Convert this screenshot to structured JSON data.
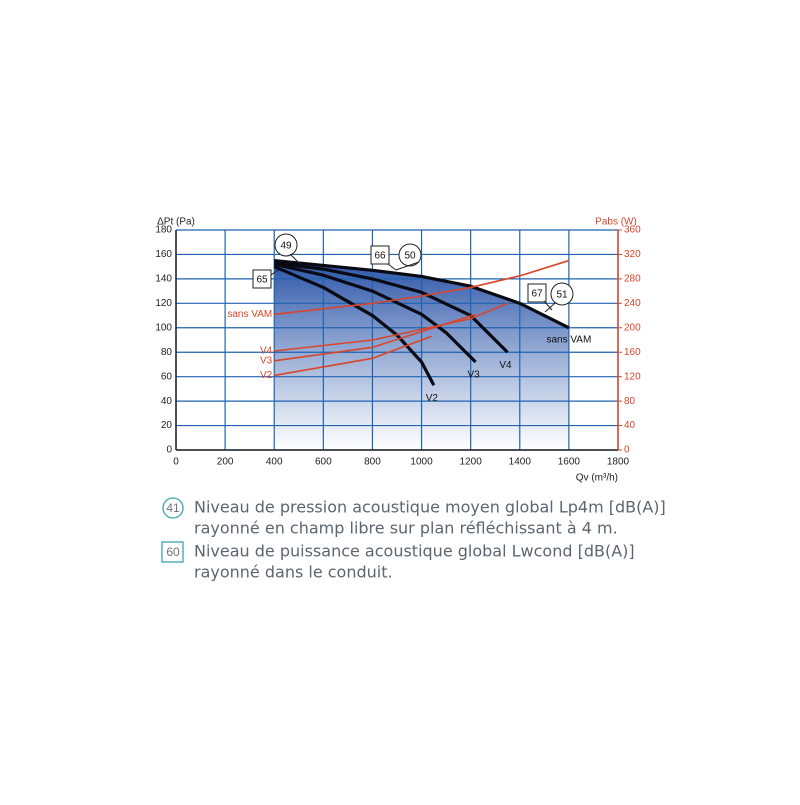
{
  "chart_data": {
    "type": "line",
    "y_label": "ΔPt (Pa)",
    "y2_label": "Pabs (W)",
    "x_label": "Qv (m³/h)",
    "xlim": [
      0,
      1800
    ],
    "xticks": [
      0,
      200,
      400,
      600,
      800,
      1000,
      1200,
      1400,
      1600,
      1800
    ],
    "ylim": [
      0,
      180
    ],
    "yticks": [
      0,
      20,
      40,
      60,
      80,
      100,
      120,
      140,
      160,
      180
    ],
    "y2lim": [
      0,
      360
    ],
    "y2ticks": [
      0,
      40,
      80,
      120,
      160,
      200,
      240,
      280,
      320,
      360
    ],
    "grid": true,
    "grid_color": "#1f63b0",
    "y2_color": "#d9452b",
    "series": [
      {
        "name": "sans VAM",
        "color": "#0a0a14",
        "x": [
          400,
          600,
          800,
          1000,
          1200,
          1400,
          1600
        ],
        "values": [
          155,
          151,
          147,
          142,
          134,
          120,
          100
        ]
      },
      {
        "name": "V4",
        "color": "#0a0a14",
        "x": [
          400,
          600,
          800,
          1000,
          1200,
          1350
        ],
        "values": [
          153,
          148,
          140,
          129,
          110,
          80
        ]
      },
      {
        "name": "V3",
        "color": "#0a0a14",
        "x": [
          400,
          600,
          800,
          1000,
          1100,
          1220
        ],
        "values": [
          152,
          143,
          130,
          111,
          96,
          72
        ]
      },
      {
        "name": "V2",
        "color": "#0a0a14",
        "x": [
          400,
          600,
          800,
          900,
          1000,
          1050
        ],
        "values": [
          150,
          133,
          110,
          94,
          72,
          53
        ]
      },
      {
        "name": "sans VAM",
        "color": "#d9452b",
        "axis": "y2",
        "x": [
          400,
          800,
          1000,
          1200,
          1400,
          1600
        ],
        "values": [
          222,
          240,
          252,
          266,
          285,
          310
        ]
      },
      {
        "name": "V4",
        "color": "#d9452b",
        "axis": "y2",
        "x": [
          400,
          800,
          1200,
          1350
        ],
        "values": [
          162,
          180,
          215,
          240
        ]
      },
      {
        "name": "V3",
        "color": "#d9452b",
        "axis": "y2",
        "x": [
          400,
          800,
          1220
        ],
        "values": [
          146,
          168,
          222
        ]
      },
      {
        "name": "V2",
        "color": "#d9452b",
        "axis": "y2",
        "x": [
          400,
          800,
          1040
        ],
        "values": [
          122,
          150,
          186
        ]
      }
    ],
    "annotations": [
      "49",
      "50",
      "51",
      "65",
      "66",
      "67"
    ]
  },
  "notes": [
    {
      "symbol": "41",
      "lines": [
        "Niveau de pression acoustique moyen global Lp4m [dB(A)]",
        "rayonné en champ libre sur plan réfléchissant à 4 m."
      ]
    },
    {
      "symbol": "60",
      "lines": [
        "Niveau de puissance acoustique global Lwcond [dB(A)]",
        "rayonné dans le conduit."
      ]
    }
  ]
}
